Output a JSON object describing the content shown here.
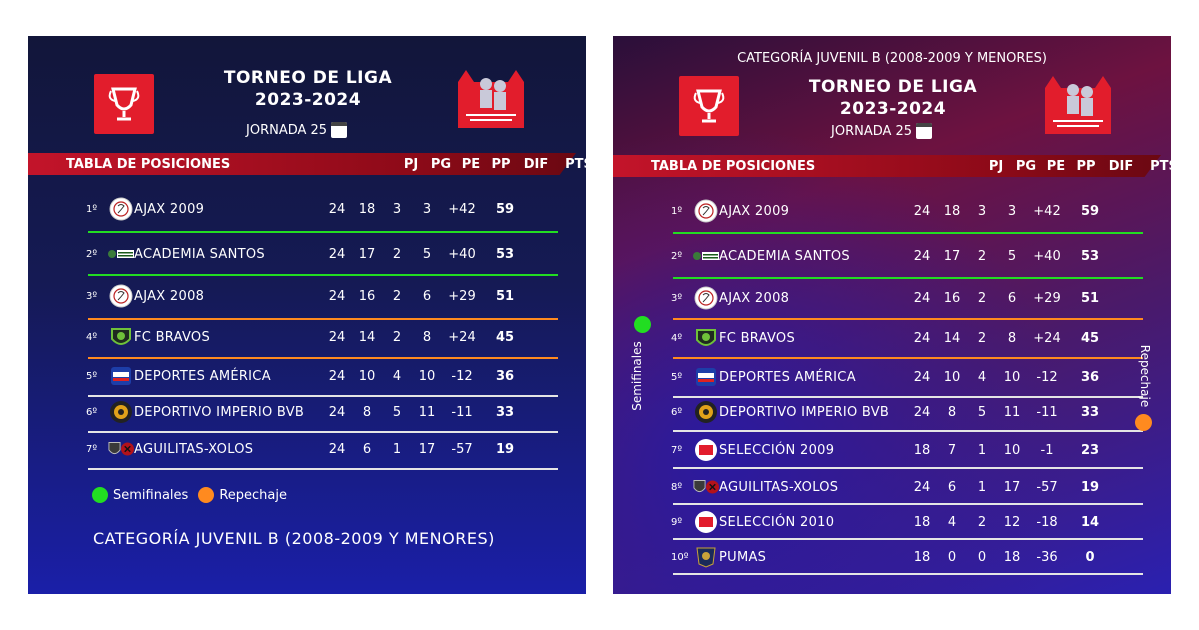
{
  "colors": {
    "semis": "#22dd22",
    "repechaje": "#ff8a1f",
    "separator": "#e5e5e5"
  },
  "panel1": {
    "title_line1": "TORNEO DE LIGA",
    "title_line2": "2023-2024",
    "jornada": "JORNADA 25",
    "banner": "TABLA DE POSICIONES",
    "headers": [
      "PJ",
      "PG",
      "PE",
      "PP",
      "DIF",
      "PTS"
    ],
    "rows": [
      {
        "pos": "1º",
        "team": "AJAX 2009",
        "pj": "24",
        "pg": "18",
        "pe": "3",
        "pp": "3",
        "dif": "+42",
        "pts": "59",
        "badge": "ajax-crest-icon",
        "sep": "semis"
      },
      {
        "pos": "2º",
        "team": "ACADEMIA SANTOS",
        "pj": "24",
        "pg": "17",
        "pe": "2",
        "pp": "5",
        "dif": "+40",
        "pts": "53",
        "badge": "santos-crest-icon",
        "sep": "semis"
      },
      {
        "pos": "3º",
        "team": "AJAX 2008",
        "pj": "24",
        "pg": "16",
        "pe": "2",
        "pp": "6",
        "dif": "+29",
        "pts": "51",
        "badge": "ajax-crest-icon",
        "sep": "repechaje"
      },
      {
        "pos": "4º",
        "team": "FC BRAVOS",
        "pj": "24",
        "pg": "14",
        "pe": "2",
        "pp": "8",
        "dif": "+24",
        "pts": "45",
        "badge": "bravos-crest-icon",
        "sep": "repechaje"
      },
      {
        "pos": "5º",
        "team": "DEPORTES AMÉRICA",
        "pj": "24",
        "pg": "10",
        "pe": "4",
        "pp": "10",
        "dif": "-12",
        "pts": "36",
        "badge": "america-crest-icon",
        "sep": "plain"
      },
      {
        "pos": "6º",
        "team": "DEPORTIVO IMPERIO BVB",
        "pj": "24",
        "pg": "8",
        "pe": "5",
        "pp": "11",
        "dif": "-11",
        "pts": "33",
        "badge": "imperio-crest-icon",
        "sep": "plain"
      },
      {
        "pos": "7º",
        "team": "AGUILITAS-XOLOS",
        "pj": "24",
        "pg": "6",
        "pe": "1",
        "pp": "17",
        "dif": "-57",
        "pts": "19",
        "badge": "aguilitas-crest-icon",
        "sep": "plain"
      }
    ],
    "legend_semis": "Semifinales",
    "legend_repechaje": "Repechaje",
    "category": "CATEGORÍA JUVENIL B (2008-2009 Y MENORES)"
  },
  "panel2": {
    "category": "CATEGORÍA JUVENIL B (2008-2009 Y MENORES)",
    "title_line1": "TORNEO DE LIGA",
    "title_line2": "2023-2024",
    "jornada": "JORNADA 25",
    "banner": "TABLA DE POSICIONES",
    "headers": [
      "PJ",
      "PG",
      "PE",
      "PP",
      "DIF",
      "PTS"
    ],
    "rows": [
      {
        "pos": "1º",
        "team": "AJAX 2009",
        "pj": "24",
        "pg": "18",
        "pe": "3",
        "pp": "3",
        "dif": "+42",
        "pts": "59",
        "badge": "ajax-crest-icon",
        "sep": "semis"
      },
      {
        "pos": "2º",
        "team": "ACADEMIA SANTOS",
        "pj": "24",
        "pg": "17",
        "pe": "2",
        "pp": "5",
        "dif": "+40",
        "pts": "53",
        "badge": "santos-crest-icon",
        "sep": "semis"
      },
      {
        "pos": "3º",
        "team": "AJAX 2008",
        "pj": "24",
        "pg": "16",
        "pe": "2",
        "pp": "6",
        "dif": "+29",
        "pts": "51",
        "badge": "ajax-crest-icon",
        "sep": "repechaje"
      },
      {
        "pos": "4º",
        "team": "FC BRAVOS",
        "pj": "24",
        "pg": "14",
        "pe": "2",
        "pp": "8",
        "dif": "+24",
        "pts": "45",
        "badge": "bravos-crest-icon",
        "sep": "repechaje"
      },
      {
        "pos": "5º",
        "team": "DEPORTES AMÉRICA",
        "pj": "24",
        "pg": "10",
        "pe": "4",
        "pp": "10",
        "dif": "-12",
        "pts": "36",
        "badge": "america-crest-icon",
        "sep": "plain"
      },
      {
        "pos": "6º",
        "team": "DEPORTIVO IMPERIO BVB",
        "pj": "24",
        "pg": "8",
        "pe": "5",
        "pp": "11",
        "dif": "-11",
        "pts": "33",
        "badge": "imperio-crest-icon",
        "sep": "plain"
      },
      {
        "pos": "7º",
        "team": "SELECCIÓN 2009",
        "pj": "18",
        "pg": "7",
        "pe": "1",
        "pp": "10",
        "dif": "-1",
        "pts": "23",
        "badge": "seleccion-crest-icon",
        "sep": "plain"
      },
      {
        "pos": "8º",
        "team": "AGUILITAS-XOLOS",
        "pj": "24",
        "pg": "6",
        "pe": "1",
        "pp": "17",
        "dif": "-57",
        "pts": "19",
        "badge": "aguilitas-crest-icon",
        "sep": "plain"
      },
      {
        "pos": "9º",
        "team": "SELECCIÓN 2010",
        "pj": "18",
        "pg": "4",
        "pe": "2",
        "pp": "12",
        "dif": "-18",
        "pts": "14",
        "badge": "seleccion-crest-icon",
        "sep": "plain"
      },
      {
        "pos": "10º",
        "team": "PUMAS",
        "pj": "18",
        "pg": "0",
        "pe": "0",
        "pp": "18",
        "dif": "-36",
        "pts": "0",
        "badge": "pumas-crest-icon",
        "sep": "plain"
      }
    ],
    "side_semis": "Semifinales",
    "side_repechaje": "Repechaje"
  }
}
